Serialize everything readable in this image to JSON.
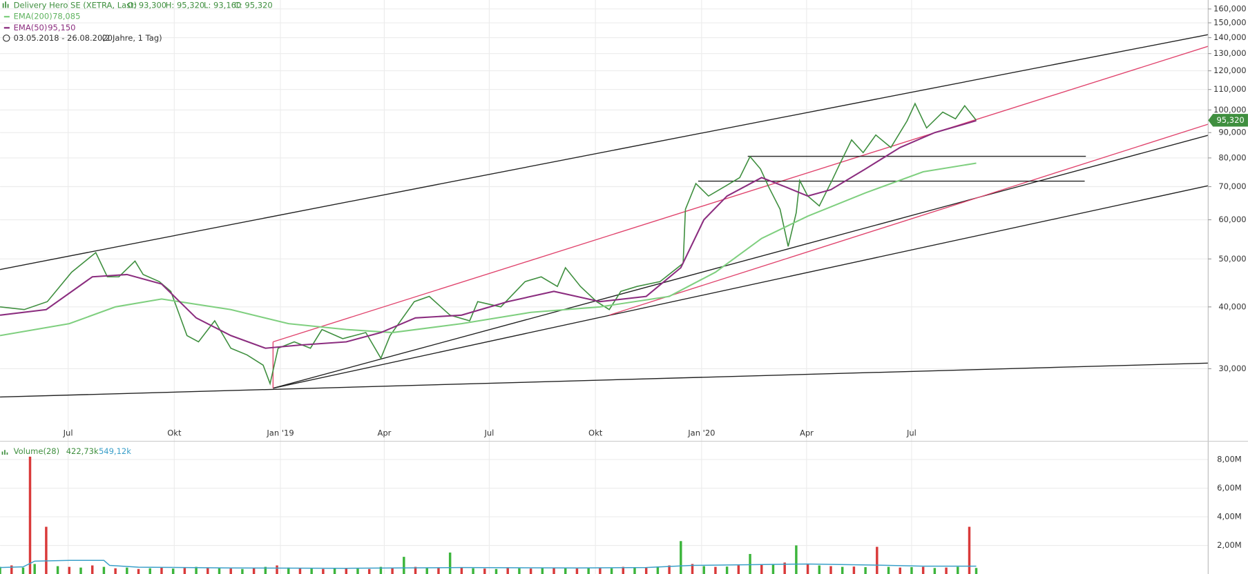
{
  "chart_data": [
    {
      "type": "line",
      "ohlc": [
        "O: 93,300",
        "H: 95,320",
        "L: 93,160",
        "C: 95,320"
      ],
      "period": "03.05.2018 - 26.08.2020",
      "span": "(2 Jahre, 1 Tag)",
      "last_label": "95,320",
      "log": true,
      "grid": true,
      "xlim": [
        0,
        1047
      ],
      "xticks": [
        {
          "value": 59,
          "label": "Jul"
        },
        {
          "value": 151,
          "label": "Okt"
        },
        {
          "value": 243,
          "label": "Jan '19"
        },
        {
          "value": 333,
          "label": "Apr"
        },
        {
          "value": 424,
          "label": "Jul"
        },
        {
          "value": 516,
          "label": "Okt"
        },
        {
          "value": 608,
          "label": "Jan '20"
        },
        {
          "value": 699,
          "label": "Apr"
        },
        {
          "value": 790,
          "label": "Jul"
        }
      ],
      "ylim": [
        22.8,
        166.8
      ],
      "yticks": [
        {
          "value": 30,
          "label": "30,000"
        },
        {
          "value": 40,
          "label": "40,000"
        },
        {
          "value": 50,
          "label": "50,000"
        },
        {
          "value": 60,
          "label": "60,000"
        },
        {
          "value": 70,
          "label": "70,000"
        },
        {
          "value": 80,
          "label": "80,000"
        },
        {
          "value": 90,
          "label": "90,000"
        },
        {
          "value": 100,
          "label": "100,000"
        },
        {
          "value": 110,
          "label": "110,000"
        },
        {
          "value": 120,
          "label": "120,000"
        },
        {
          "value": 130,
          "label": "130,000"
        },
        {
          "value": 140,
          "label": "140,000"
        },
        {
          "value": 150,
          "label": "150,000"
        },
        {
          "value": 160,
          "label": "160,000"
        }
      ],
      "series": [
        {
          "name": "Delivery Hero SE (XETRA, Last)",
          "color": "#3f8f3f",
          "x": [
            0,
            21,
            41,
            62,
            83,
            93,
            103,
            117,
            124,
            138,
            148,
            162,
            172,
            186,
            200,
            214,
            228,
            234,
            241,
            255,
            269,
            279,
            297,
            317,
            330,
            338,
            359,
            372,
            390,
            407,
            414,
            434,
            455,
            469,
            483,
            490,
            503,
            517,
            528,
            538,
            552,
            572,
            592,
            594,
            603,
            614,
            628,
            641,
            650,
            659,
            666,
            676,
            683,
            690,
            693,
            700,
            710,
            721,
            728,
            738,
            748,
            759,
            772,
            786,
            793,
            803,
            817,
            828,
            836,
            846
          ],
          "values": [
            40,
            39.5,
            41,
            47,
            51.5,
            46,
            46,
            49.5,
            46.5,
            45,
            43,
            35,
            34,
            37.5,
            33,
            32,
            30.5,
            28,
            33,
            34,
            33,
            36,
            34.5,
            35.5,
            31.5,
            35,
            41,
            42,
            38.5,
            37.5,
            41,
            40,
            45,
            46,
            44,
            48,
            44,
            41,
            39.5,
            43,
            44,
            45,
            49,
            63,
            71,
            67,
            70,
            73,
            80.5,
            76,
            70,
            63,
            53,
            62,
            72,
            67,
            64,
            72,
            78,
            87,
            82,
            89,
            84,
            95,
            103,
            92,
            99,
            96,
            102,
            95.32
          ]
        },
        {
          "name": "EMA(200)",
          "last": "78,085",
          "color": "#7fcf7f",
          "x": [
            0,
            60,
            100,
            140,
            200,
            250,
            300,
            340,
            400,
            460,
            520,
            580,
            620,
            660,
            700,
            750,
            800,
            846
          ],
          "values": [
            35,
            37,
            40,
            41.5,
            39.5,
            37,
            36,
            35.5,
            37,
            39,
            40,
            42,
            47,
            55,
            61,
            68,
            75,
            78.085
          ]
        },
        {
          "name": "EMA(50)",
          "last": "95,150",
          "color": "#8b2d7f",
          "x": [
            0,
            40,
            80,
            110,
            140,
            170,
            200,
            230,
            260,
            300,
            330,
            360,
            400,
            440,
            480,
            520,
            560,
            590,
            610,
            630,
            660,
            680,
            700,
            720,
            750,
            780,
            810,
            846
          ],
          "values": [
            38.5,
            39.5,
            46,
            46.5,
            44.5,
            38,
            35,
            33,
            33.5,
            34,
            35.5,
            38,
            38.5,
            41,
            43,
            41,
            42,
            48,
            60,
            67,
            73,
            70,
            67,
            69,
            76,
            84,
            90,
            95.15
          ]
        }
      ],
      "trendlines": [
        {
          "x": [
            0,
            1047
          ],
          "y": [
            47.6,
            142
          ],
          "color": "#222222"
        },
        {
          "x": [
            236.6,
            1047
          ],
          "y": [
            27.4,
            88.9
          ],
          "color": "#222222"
        },
        {
          "x": [
            236.6,
            1047
          ],
          "y": [
            27.4,
            70.3
          ],
          "color": "#222222"
        },
        {
          "x": [
            0,
            1047
          ],
          "y": [
            26.3,
            30.8
          ],
          "color": "#222222"
        },
        {
          "x": [
            236.6,
            1047
          ],
          "y": [
            34,
            134.5
          ],
          "color": "#e0456e"
        },
        {
          "x": [
            528,
            1047
          ],
          "y": [
            38.5,
            93.6
          ],
          "color": "#e0456e"
        },
        {
          "x": [
            236.6,
            236.6
          ],
          "y": [
            27.4,
            34
          ],
          "color": "#e0456e"
        },
        {
          "x": [
            648,
            941
          ],
          "y": [
            80.6,
            80.6
          ],
          "color": "#222222"
        },
        {
          "x": [
            605,
            940
          ],
          "y": [
            71.8,
            71.8
          ],
          "color": "#222222"
        }
      ]
    },
    {
      "type": "bar",
      "title": "Volume(28)",
      "value_texts": [
        "422,73k",
        "549,12k"
      ],
      "xlim": [
        0,
        1047
      ],
      "ylim": [
        0,
        9000000
      ],
      "yticks": [
        {
          "value": 2000000,
          "label": "2,00M"
        },
        {
          "value": 4000000,
          "label": "4,00M"
        },
        {
          "value": 6000000,
          "label": "6,00M"
        },
        {
          "value": 8000000,
          "label": "8,00M"
        }
      ],
      "series": [
        {
          "color": "#3cb53c",
          "down_color": "#d93a3a",
          "x": [
            0,
            10,
            20,
            26,
            30,
            40,
            50,
            60,
            70,
            80,
            90,
            100,
            110,
            120,
            130,
            140,
            150,
            160,
            170,
            180,
            190,
            200,
            210,
            220,
            230,
            240,
            250,
            260,
            270,
            280,
            290,
            300,
            310,
            320,
            330,
            340,
            350,
            360,
            370,
            380,
            390,
            400,
            410,
            420,
            430,
            440,
            450,
            460,
            470,
            480,
            490,
            500,
            510,
            520,
            530,
            540,
            550,
            560,
            570,
            580,
            590,
            600,
            610,
            620,
            630,
            640,
            650,
            660,
            670,
            680,
            690,
            700,
            710,
            720,
            730,
            740,
            750,
            760,
            770,
            780,
            790,
            800,
            810,
            820,
            830,
            840,
            846
          ],
          "values": [
            500000,
            600000,
            450000,
            8200000,
            700000,
            3300000,
            550000,
            500000,
            450000,
            600000,
            500000,
            400000,
            450000,
            350000,
            400000,
            450000,
            380000,
            420000,
            500000,
            450000,
            400000,
            380000,
            350000,
            420000,
            500000,
            600000,
            450000,
            400000,
            380000,
            350000,
            420000,
            400000,
            380000,
            350000,
            500000,
            450000,
            1200000,
            500000,
            450000,
            420000,
            1500000,
            450000,
            400000,
            380000,
            350000,
            420000,
            400000,
            380000,
            450000,
            420000,
            400000,
            380000,
            420000,
            450000,
            400000,
            500000,
            450000,
            480000,
            520000,
            600000,
            2300000,
            700000,
            550000,
            500000,
            520000,
            600000,
            1400000,
            650000,
            700000,
            800000,
            2000000,
            700000,
            600000,
            550000,
            500000,
            520000,
            480000,
            1900000,
            500000,
            450000,
            480000,
            500000,
            420000,
            450000,
            500000,
            3300000,
            422730
          ]
        }
      ],
      "avg": {
        "color": "#3a9fc9",
        "x": [
          0,
          20,
          30,
          60,
          90,
          95,
          120,
          200,
          300,
          400,
          500,
          560,
          600,
          650,
          700,
          760,
          800,
          846
        ],
        "values": [
          450000,
          500000,
          900000,
          950000,
          950000,
          600000,
          480000,
          420000,
          400000,
          450000,
          420000,
          450000,
          600000,
          650000,
          700000,
          620000,
          550000,
          549120
        ]
      }
    }
  ]
}
